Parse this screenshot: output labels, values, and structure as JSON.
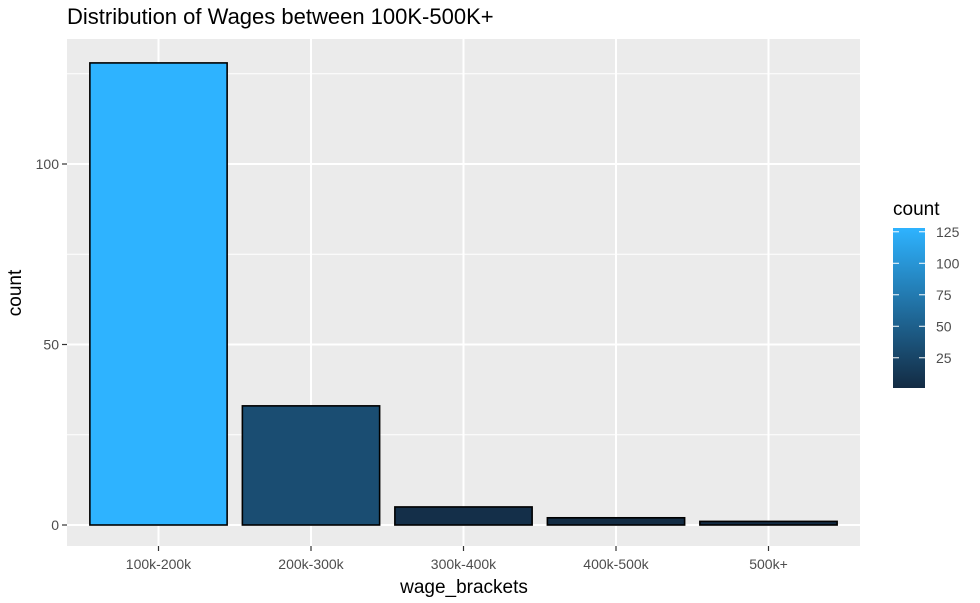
{
  "chart_data": {
    "type": "bar",
    "title": "Distribution of Wages between 100K-500K+",
    "xlabel": "wage_brackets",
    "ylabel": "count",
    "categories": [
      "100k-200k",
      "200k-300k",
      "300k-400k",
      "400k-500k",
      "500k+"
    ],
    "values": [
      128,
      33,
      5,
      2,
      1
    ],
    "ylim": [
      0,
      135
    ],
    "yticks": [
      0,
      50,
      100
    ],
    "yticks_labels": [
      "0",
      "50",
      "100"
    ],
    "grid": true,
    "legend": {
      "title": "count",
      "placement": "right",
      "type": "colorbar",
      "ticks": [
        25,
        50,
        75,
        100,
        125
      ],
      "tick_labels": [
        "25",
        "50",
        "75",
        "100",
        "125"
      ],
      "range": [
        1,
        128
      ],
      "color_low": "#132B43",
      "color_high": "#2EB3FF"
    },
    "colors": {
      "panel_background": "#EBEBEB",
      "grid": "#FFFFFF",
      "bar_outline": "#000000"
    }
  }
}
